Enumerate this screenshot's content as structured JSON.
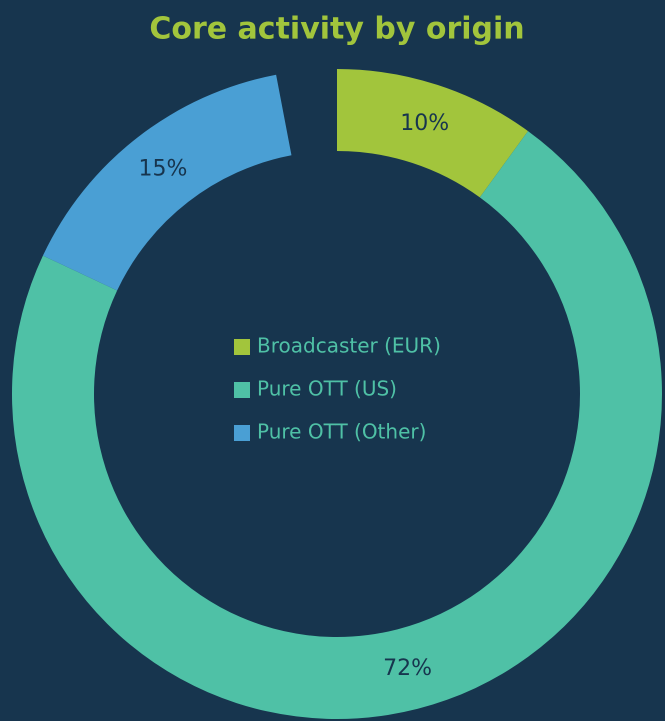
{
  "chart_data": {
    "type": "donut",
    "title": "Core activity by origin",
    "categories": [
      "Broadcaster (EUR)",
      "Pure OTT (US)",
      "Pure OTT (Other)"
    ],
    "values": [
      10,
      72,
      15
    ],
    "value_labels": [
      "10%",
      "72%",
      "15%"
    ],
    "colors": [
      "#a2c53c",
      "#4fc1a6",
      "#4a9fd4"
    ]
  }
}
